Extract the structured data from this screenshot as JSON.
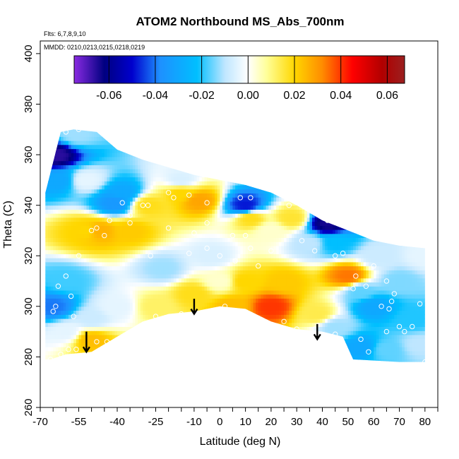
{
  "chart_data": {
    "type": "heatmap",
    "title": "ATOM2 Northbound MS_Abs_700nm",
    "notes": [
      "Flts: 6,7,8,9,10",
      "MMDD: 0210,0213,0215,0218,0219"
    ],
    "xlabel": "Latitude (deg N)",
    "ylabel": "Theta (C)",
    "xlim": [
      -70,
      85
    ],
    "ylim": [
      260,
      405
    ],
    "x_ticks": [
      -70,
      -65,
      -60,
      -55,
      -50,
      -45,
      -40,
      -35,
      -30,
      -25,
      -20,
      -15,
      -10,
      -5,
      0,
      5,
      10,
      15,
      20,
      25,
      30,
      35,
      40,
      45,
      50,
      55,
      60,
      65,
      70,
      75,
      80,
      85
    ],
    "x_tick_labels": [
      {
        "v": -70,
        "t": "-70"
      },
      {
        "v": -55,
        "t": "-55"
      },
      {
        "v": -40,
        "t": "-40"
      },
      {
        "v": -25,
        "t": "-25"
      },
      {
        "v": -10,
        "t": "-10"
      },
      {
        "v": 0,
        "t": "0"
      },
      {
        "v": 10,
        "t": "10"
      },
      {
        "v": 20,
        "t": "20"
      },
      {
        "v": 30,
        "t": "30"
      },
      {
        "v": 40,
        "t": "40"
      },
      {
        "v": 50,
        "t": "50"
      },
      {
        "v": 60,
        "t": "60"
      },
      {
        "v": 70,
        "t": "70"
      },
      {
        "v": 80,
        "t": "80"
      }
    ],
    "y_ticks": [
      260,
      280,
      300,
      320,
      340,
      360,
      380,
      400
    ],
    "y_tick_labels": [
      "260",
      "280",
      "300",
      "320",
      "340",
      "360",
      "380",
      "400"
    ],
    "colorbar": {
      "range": [
        -0.075,
        0.0675
      ],
      "ticks": [
        -0.06,
        -0.04,
        -0.02,
        0.0,
        0.02,
        0.04,
        0.06
      ],
      "tick_labels": [
        "-0.06",
        "-0.04",
        "-0.02",
        "0.00",
        "0.02",
        "0.04",
        "0.06"
      ],
      "stops": [
        {
          "v": -0.075,
          "color": "#8a2be2"
        },
        {
          "v": -0.062,
          "color": "#000080"
        },
        {
          "v": -0.05,
          "color": "#0000cd"
        },
        {
          "v": -0.038,
          "color": "#1e90ff"
        },
        {
          "v": -0.022,
          "color": "#00bfff"
        },
        {
          "v": -0.01,
          "color": "#bfe6ff"
        },
        {
          "v": 0.0,
          "color": "#ffffff"
        },
        {
          "v": 0.008,
          "color": "#ffff99"
        },
        {
          "v": 0.02,
          "color": "#ffd700"
        },
        {
          "v": 0.032,
          "color": "#ff8c00"
        },
        {
          "v": 0.045,
          "color": "#ff0000"
        },
        {
          "v": 0.058,
          "color": "#b00000"
        },
        {
          "v": 0.0675,
          "color": "#9b2020"
        }
      ]
    },
    "field_boundary": {
      "top": [
        [
          -68,
          345
        ],
        [
          -62,
          369
        ],
        [
          -57,
          370
        ],
        [
          -48,
          369
        ],
        [
          -40,
          362
        ],
        [
          -30,
          358
        ],
        [
          -20,
          355
        ],
        [
          -10,
          352
        ],
        [
          0,
          350
        ],
        [
          10,
          348
        ],
        [
          20,
          345
        ],
        [
          30,
          340
        ],
        [
          40,
          334
        ],
        [
          50,
          330
        ],
        [
          60,
          326
        ],
        [
          70,
          324
        ],
        [
          80,
          323
        ]
      ],
      "bottom": [
        [
          80,
          278
        ],
        [
          70,
          278
        ],
        [
          52,
          279
        ],
        [
          48,
          288
        ],
        [
          40,
          290
        ],
        [
          30,
          291
        ],
        [
          20,
          294
        ],
        [
          10,
          299
        ],
        [
          0,
          300
        ],
        [
          -10,
          298
        ],
        [
          -20,
          297
        ],
        [
          -30,
          294
        ],
        [
          -40,
          288
        ],
        [
          -50,
          282
        ],
        [
          -60,
          281
        ],
        [
          -66,
          279
        ],
        [
          -68,
          279
        ]
      ]
    },
    "value_field": [
      {
        "lat": -64,
        "theta": 360,
        "v": -0.066
      },
      {
        "lat": -63,
        "theta": 350,
        "v": -0.03
      },
      {
        "lat": -56,
        "theta": 368,
        "v": -0.012
      },
      {
        "lat": -52,
        "theta": 350,
        "v": -0.004
      },
      {
        "lat": -52,
        "theta": 330,
        "v": 0.02
      },
      {
        "lat": -47,
        "theta": 330,
        "v": 0.026
      },
      {
        "lat": -41,
        "theta": 341,
        "v": -0.035
      },
      {
        "lat": -38,
        "theta": 345,
        "v": -0.03
      },
      {
        "lat": -35,
        "theta": 330,
        "v": 0.022
      },
      {
        "lat": -28,
        "theta": 340,
        "v": 0.018
      },
      {
        "lat": -22,
        "theta": 315,
        "v": -0.012
      },
      {
        "lat": -15,
        "theta": 350,
        "v": -0.006
      },
      {
        "lat": -15,
        "theta": 345,
        "v": 0.02
      },
      {
        "lat": -8,
        "theta": 342,
        "v": 0.028
      },
      {
        "lat": -3,
        "theta": 320,
        "v": -0.006
      },
      {
        "lat": 5,
        "theta": 300,
        "v": 0.024
      },
      {
        "lat": 10,
        "theta": 340,
        "v": -0.048
      },
      {
        "lat": 12,
        "theta": 335,
        "v": 0.018
      },
      {
        "lat": 20,
        "theta": 300,
        "v": 0.04
      },
      {
        "lat": 20,
        "theta": 330,
        "v": 0.004
      },
      {
        "lat": 25,
        "theta": 310,
        "v": 0.022
      },
      {
        "lat": 28,
        "theta": 335,
        "v": 0.016
      },
      {
        "lat": 35,
        "theta": 325,
        "v": -0.01
      },
      {
        "lat": 42,
        "theta": 333,
        "v": -0.064
      },
      {
        "lat": 45,
        "theta": 325,
        "v": -0.022
      },
      {
        "lat": 50,
        "theta": 312,
        "v": 0.034
      },
      {
        "lat": 55,
        "theta": 306,
        "v": -0.016
      },
      {
        "lat": 60,
        "theta": 300,
        "v": -0.03
      },
      {
        "lat": 62,
        "theta": 320,
        "v": -0.008
      },
      {
        "lat": 70,
        "theta": 310,
        "v": -0.014
      },
      {
        "lat": 75,
        "theta": 295,
        "v": -0.02
      },
      {
        "lat": -65,
        "theta": 300,
        "v": -0.04
      },
      {
        "lat": -60,
        "theta": 310,
        "v": -0.018
      },
      {
        "lat": -60,
        "theta": 290,
        "v": -0.004
      },
      {
        "lat": -50,
        "theta": 295,
        "v": -0.008
      },
      {
        "lat": -50,
        "theta": 287,
        "v": 0.024
      },
      {
        "lat": -40,
        "theta": 300,
        "v": -0.004
      },
      {
        "lat": -25,
        "theta": 300,
        "v": 0.012
      },
      {
        "lat": -10,
        "theta": 305,
        "v": 0.018
      },
      {
        "lat": 0,
        "theta": 310,
        "v": 0.004
      },
      {
        "lat": 10,
        "theta": 310,
        "v": 0.02
      },
      {
        "lat": 38,
        "theta": 297,
        "v": 0.014
      },
      {
        "lat": 45,
        "theta": 292,
        "v": -0.012
      },
      {
        "lat": 55,
        "theta": 284,
        "v": -0.03
      },
      {
        "lat": 65,
        "theta": 283,
        "v": -0.016
      },
      {
        "lat": 78,
        "theta": 285,
        "v": -0.01
      },
      {
        "lat": 80,
        "theta": 320,
        "v": -0.004
      }
    ],
    "samples": [
      {
        "lat": -67,
        "theta": 359
      },
      {
        "lat": -60,
        "theta": 369
      },
      {
        "lat": -55,
        "theta": 370
      },
      {
        "lat": -38,
        "theta": 341
      },
      {
        "lat": -35,
        "theta": 336
      },
      {
        "lat": -30,
        "theta": 340
      },
      {
        "lat": -28,
        "theta": 340
      },
      {
        "lat": -20,
        "theta": 345
      },
      {
        "lat": -18,
        "theta": 343
      },
      {
        "lat": -12,
        "theta": 344
      },
      {
        "lat": -5,
        "theta": 341
      },
      {
        "lat": 8,
        "theta": 343
      },
      {
        "lat": 12,
        "theta": 343
      },
      {
        "lat": 27,
        "theta": 340
      },
      {
        "lat": 42,
        "theta": 334
      },
      {
        "lat": -48,
        "theta": 331
      },
      {
        "lat": -50,
        "theta": 330
      },
      {
        "lat": -43,
        "theta": 334
      },
      {
        "lat": -45,
        "theta": 328
      },
      {
        "lat": -35,
        "theta": 333
      },
      {
        "lat": -20,
        "theta": 331
      },
      {
        "lat": -10,
        "theta": 329
      },
      {
        "lat": -5,
        "theta": 333
      },
      {
        "lat": 5,
        "theta": 328
      },
      {
        "lat": 10,
        "theta": 328
      },
      {
        "lat": 12,
        "theta": 323
      },
      {
        "lat": 20,
        "theta": 322
      },
      {
        "lat": 32,
        "theta": 326
      },
      {
        "lat": 37,
        "theta": 322
      },
      {
        "lat": 45,
        "theta": 320
      },
      {
        "lat": 48,
        "theta": 321
      },
      {
        "lat": -55,
        "theta": 320
      },
      {
        "lat": -27,
        "theta": 320
      },
      {
        "lat": -12,
        "theta": 321
      },
      {
        "lat": -5,
        "theta": 323
      },
      {
        "lat": 0,
        "theta": 320
      },
      {
        "lat": 6,
        "theta": 318
      },
      {
        "lat": 15,
        "theta": 316
      },
      {
        "lat": 53,
        "theta": 312
      },
      {
        "lat": 60,
        "theta": 316
      },
      {
        "lat": -60,
        "theta": 312
      },
      {
        "lat": -63,
        "theta": 308
      },
      {
        "lat": -58,
        "theta": 304
      },
      {
        "lat": -64,
        "theta": 300
      },
      {
        "lat": -65,
        "theta": 298
      },
      {
        "lat": -57,
        "theta": 296
      },
      {
        "lat": 52,
        "theta": 307
      },
      {
        "lat": 57,
        "theta": 308
      },
      {
        "lat": 65,
        "theta": 310
      },
      {
        "lat": 68,
        "theta": 305
      },
      {
        "lat": 67,
        "theta": 302
      },
      {
        "lat": 66,
        "theta": 299
      },
      {
        "lat": 63,
        "theta": 300
      },
      {
        "lat": 78,
        "theta": 301
      },
      {
        "lat": 2,
        "theta": 300
      },
      {
        "lat": 10,
        "theta": 297
      },
      {
        "lat": 15,
        "theta": 294
      },
      {
        "lat": 25,
        "theta": 294
      },
      {
        "lat": 30,
        "theta": 291
      },
      {
        "lat": 37,
        "theta": 291
      },
      {
        "lat": 45,
        "theta": 289
      },
      {
        "lat": 55,
        "theta": 287
      },
      {
        "lat": 58,
        "theta": 282
      },
      {
        "lat": 65,
        "theta": 290
      },
      {
        "lat": 70,
        "theta": 292
      },
      {
        "lat": 72,
        "theta": 290
      },
      {
        "lat": 75,
        "theta": 292
      },
      {
        "lat": 62,
        "theta": 277
      },
      {
        "lat": -48,
        "theta": 286
      },
      {
        "lat": -44,
        "theta": 286
      },
      {
        "lat": -62,
        "theta": 281
      },
      {
        "lat": -59,
        "theta": 283
      },
      {
        "lat": -56,
        "theta": 283
      },
      {
        "lat": -66,
        "theta": 279
      },
      {
        "lat": -25,
        "theta": 296
      },
      {
        "lat": -15,
        "theta": 297
      },
      {
        "lat": 80,
        "theta": 278
      }
    ],
    "arrows": [
      {
        "lat": -52,
        "theta_top": 290,
        "theta_tip": 282
      },
      {
        "lat": -10,
        "theta_top": 303,
        "theta_tip": 297
      },
      {
        "lat": 38,
        "theta_top": 293,
        "theta_tip": 287
      }
    ]
  }
}
